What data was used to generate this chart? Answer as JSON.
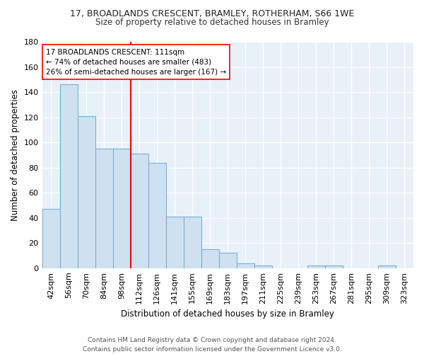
{
  "title1": "17, BROADLANDS CRESCENT, BRAMLEY, ROTHERHAM, S66 1WE",
  "title2": "Size of property relative to detached houses in Bramley",
  "xlabel": "Distribution of detached houses by size in Bramley",
  "ylabel": "Number of detached properties",
  "categories": [
    "42sqm",
    "56sqm",
    "70sqm",
    "84sqm",
    "98sqm",
    "112sqm",
    "126sqm",
    "141sqm",
    "155sqm",
    "169sqm",
    "183sqm",
    "197sqm",
    "211sqm",
    "225sqm",
    "239sqm",
    "253sqm",
    "267sqm",
    "281sqm",
    "295sqm",
    "309sqm",
    "323sqm"
  ],
  "values": [
    47,
    146,
    121,
    95,
    95,
    91,
    84,
    41,
    41,
    15,
    12,
    4,
    2,
    0,
    0,
    2,
    2,
    0,
    0,
    2,
    0
  ],
  "bar_color": "#cfe0f0",
  "bar_edge_color": "#6aaad4",
  "background_color": "#e8f0f8",
  "annotation_line1": "17 BROADLANDS CRESCENT: 111sqm",
  "annotation_line2": "← 74% of detached houses are smaller (483)",
  "annotation_line3": "26% of semi-detached houses are larger (167) →",
  "vline_x_index": 5,
  "ylim": [
    0,
    180
  ],
  "yticks": [
    0,
    20,
    40,
    60,
    80,
    100,
    120,
    140,
    160,
    180
  ],
  "footer_line1": "Contains HM Land Registry data © Crown copyright and database right 2024.",
  "footer_line2": "Contains public sector information licensed under the Government Licence v3.0."
}
